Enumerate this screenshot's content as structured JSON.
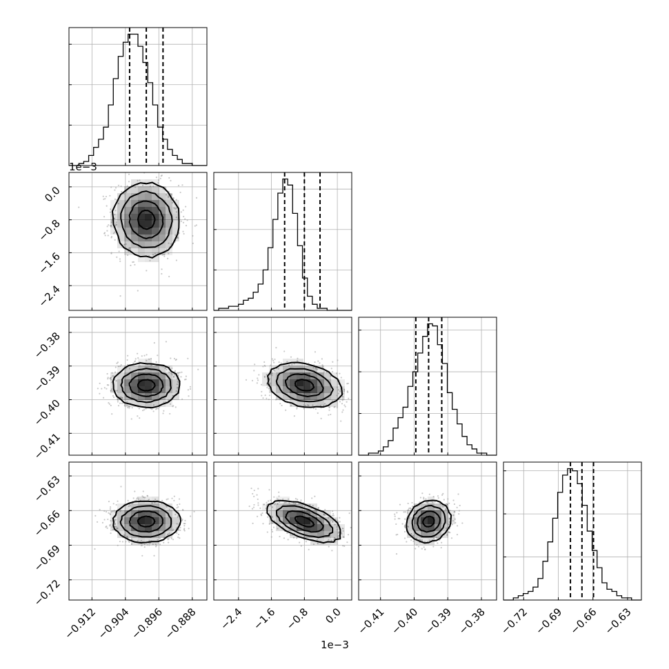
{
  "chart_data": {
    "type": "corner",
    "colors": {
      "ink": "#000000",
      "grid": "#b0b0b0",
      "scatter": "#9a9a9a",
      "shade": "#000000"
    },
    "grid": true,
    "parameters": [
      {
        "range": [
          -0.9175,
          -0.8845
        ],
        "ticks": [
          "−0.912",
          "−0.904",
          "−0.896",
          "−0.888"
        ],
        "tick_values": [
          -0.912,
          -0.904,
          -0.896,
          -0.888
        ],
        "offset": "",
        "mean": -0.899,
        "sd": 0.004,
        "quantiles": [
          -0.90299,
          -0.899,
          -0.895
        ],
        "hist_counts": [
          0,
          0,
          1,
          2,
          5,
          9,
          13,
          19,
          30,
          43,
          54,
          61,
          65,
          65,
          59,
          51,
          41,
          30,
          19,
          13,
          8,
          5,
          3,
          1,
          1,
          0,
          0,
          0
        ]
      },
      {
        "range": [
          -3.0,
          0.35
        ],
        "ticks": [
          "−2.4",
          "−1.6",
          "−0.8",
          "0.0"
        ],
        "tick_values": [
          -2.4,
          -1.6,
          -0.8,
          0.0
        ],
        "offset": "1e−3",
        "mean": -0.8,
        "sd": 0.45,
        "quantiles": [
          -1.28,
          -0.8,
          -0.42
        ],
        "hist_counts": [
          0,
          1,
          1,
          2,
          2,
          3,
          5,
          6,
          9,
          13,
          20,
          31,
          45,
          58,
          65,
          62,
          48,
          32,
          16,
          7,
          3,
          1,
          1,
          0,
          0,
          0,
          0,
          0
        ]
      },
      {
        "range": [
          -0.4165,
          -0.3755
        ],
        "ticks": [
          "−0.41",
          "−0.40",
          "−0.39",
          "−0.38"
        ],
        "tick_values": [
          -0.41,
          -0.4,
          -0.39,
          -0.38
        ],
        "offset": "",
        "mean": -0.3957,
        "sd": 0.0033,
        "quantiles": [
          -0.3995,
          -0.3957,
          -0.3918
        ],
        "hist_counts": [
          0,
          0,
          1,
          1,
          2,
          4,
          7,
          13,
          18,
          23,
          33,
          40,
          49,
          57,
          63,
          62,
          53,
          44,
          30,
          22,
          15,
          9,
          5,
          3,
          1,
          1,
          0,
          0
        ]
      },
      {
        "range": [
          -0.7375,
          -0.618
        ],
        "ticks": [
          "−0.72",
          "−0.69",
          "−0.66",
          "−0.63"
        ],
        "tick_values": [
          -0.72,
          -0.69,
          -0.66,
          -0.63
        ],
        "offset": "",
        "mean": -0.6695,
        "sd": 0.009,
        "quantiles": [
          -0.6795,
          -0.6695,
          -0.6595
        ],
        "hist_counts": [
          0,
          0,
          1,
          2,
          3,
          4,
          6,
          10,
          18,
          27,
          38,
          50,
          58,
          61,
          60,
          54,
          44,
          32,
          23,
          15,
          8,
          5,
          4,
          2,
          1,
          1,
          0,
          0
        ]
      }
    ],
    "correlations": [
      {
        "row": 1,
        "col": 0,
        "rho": -0.05
      },
      {
        "row": 2,
        "col": 0,
        "rho": 0.0
      },
      {
        "row": 2,
        "col": 1,
        "rho": -0.25
      },
      {
        "row": 3,
        "col": 0,
        "rho": 0.02
      },
      {
        "row": 3,
        "col": 1,
        "rho": -0.55
      },
      {
        "row": 3,
        "col": 2,
        "rho": 0.12
      }
    ]
  }
}
